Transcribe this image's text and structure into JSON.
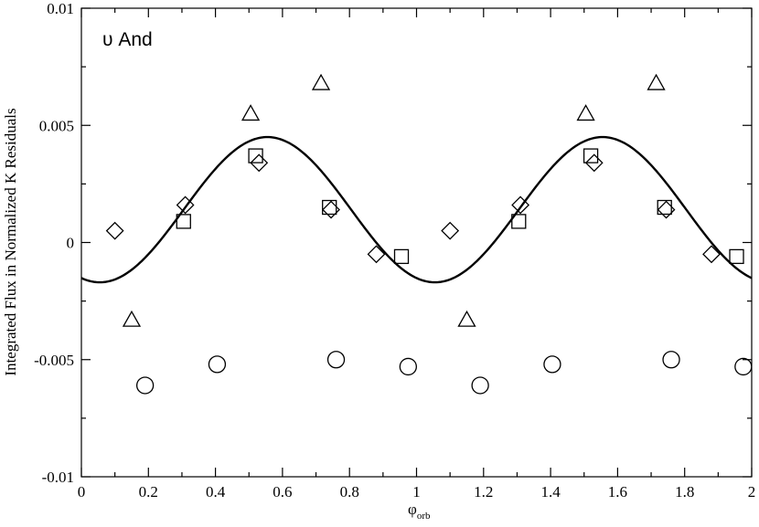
{
  "chart_data": {
    "type": "scatter",
    "annotation": "υ And",
    "xlabel": "φ",
    "xlabel_sub": "orb",
    "ylabel": "Integrated Flux in Normalized K Residuals",
    "xlim": [
      0,
      2
    ],
    "ylim": [
      -0.01,
      0.01
    ],
    "x_ticks": [
      0,
      0.2,
      0.4,
      0.6,
      0.8,
      1,
      1.2,
      1.4,
      1.6,
      1.8,
      2
    ],
    "x_tick_labels": [
      "0",
      "0.2",
      "0.4",
      "0.6",
      "0.8",
      "1",
      "1.2",
      "1.4",
      "1.6",
      "1.8",
      "2"
    ],
    "y_ticks": [
      -0.01,
      -0.005,
      0,
      0.005,
      0.01
    ],
    "y_tick_labels": [
      "-0.01",
      "-0.005",
      "0",
      "0.005",
      "0.01"
    ],
    "grid": false,
    "curve": {
      "type": "line",
      "model": "sinusoid",
      "offset": 0.0014,
      "amplitude": 0.0031,
      "period": 1.0,
      "phase_of_max": 0.555,
      "color": "#000000"
    },
    "series": [
      {
        "marker": "triangle",
        "points": [
          {
            "x": 0.15,
            "y": -0.0033
          },
          {
            "x": 0.505,
            "y": 0.0055
          },
          {
            "x": 0.715,
            "y": 0.0068
          },
          {
            "x": 1.15,
            "y": -0.0033
          },
          {
            "x": 1.505,
            "y": 0.0055
          },
          {
            "x": 1.715,
            "y": 0.0068
          }
        ]
      },
      {
        "marker": "square",
        "points": [
          {
            "x": 0.305,
            "y": 0.0009
          },
          {
            "x": 0.52,
            "y": 0.0037
          },
          {
            "x": 0.74,
            "y": 0.0015
          },
          {
            "x": 0.955,
            "y": -0.0006
          },
          {
            "x": 1.305,
            "y": 0.0009
          },
          {
            "x": 1.52,
            "y": 0.0037
          },
          {
            "x": 1.74,
            "y": 0.0015
          },
          {
            "x": 1.955,
            "y": -0.0006
          }
        ]
      },
      {
        "marker": "diamond",
        "points": [
          {
            "x": 0.1,
            "y": 0.0005
          },
          {
            "x": 0.31,
            "y": 0.0016
          },
          {
            "x": 0.53,
            "y": 0.0034
          },
          {
            "x": 0.745,
            "y": 0.0014
          },
          {
            "x": 0.88,
            "y": -0.0005
          },
          {
            "x": 1.1,
            "y": 0.0005
          },
          {
            "x": 1.31,
            "y": 0.0016
          },
          {
            "x": 1.53,
            "y": 0.0034
          },
          {
            "x": 1.745,
            "y": 0.0014
          },
          {
            "x": 1.88,
            "y": -0.0005
          }
        ]
      },
      {
        "marker": "circle",
        "points": [
          {
            "x": 0.19,
            "y": -0.0061
          },
          {
            "x": 0.405,
            "y": -0.0052
          },
          {
            "x": 0.76,
            "y": -0.005
          },
          {
            "x": 0.975,
            "y": -0.0053
          },
          {
            "x": 1.19,
            "y": -0.0061
          },
          {
            "x": 1.405,
            "y": -0.0052
          },
          {
            "x": 1.76,
            "y": -0.005
          },
          {
            "x": 1.975,
            "y": -0.0053
          }
        ]
      }
    ]
  }
}
